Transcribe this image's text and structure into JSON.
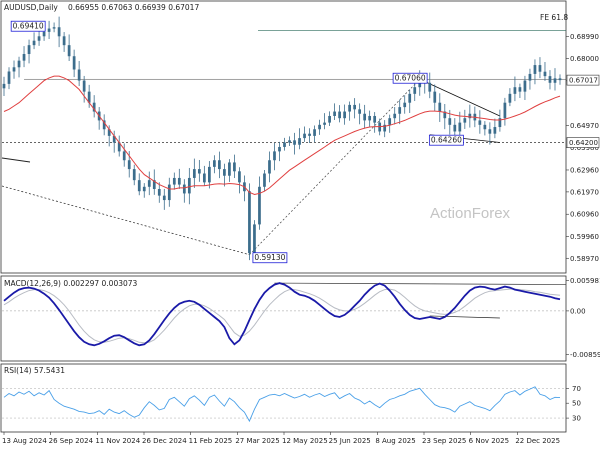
{
  "chart_data": [
    {
      "type": "candlestick",
      "panel": "price",
      "symbol_header": "AUDUSD,Daily",
      "ohlc_header": "0.66955 0.67063 0.66939 0.67017",
      "watermark": "ActionForex",
      "ylim": [
        0.5835,
        0.7055
      ],
      "y_ticks": [
        0.6899,
        0.68,
        0.6699,
        0.6497,
        0.6398,
        0.6296,
        0.6197,
        0.6096,
        0.5996,
        0.5897
      ],
      "y_tick_labels": [
        "0.68990",
        "0.68000",
        "0.66990",
        "0.64970",
        "0.63980",
        "0.62960",
        "0.61970",
        "0.60960",
        "0.59960",
        "0.58970"
      ],
      "last_price_label": "0.67017",
      "horizontal_level_label": "0.64200",
      "horizontal_level": 0.642,
      "fib_label": "FE 61.8",
      "fib_level": 0.6927,
      "resistance_level": 0.6706,
      "annotations": [
        {
          "label": "0.69410",
          "date_index": 1,
          "value": 0.6941
        },
        {
          "label": "0.59130",
          "date_index": 11,
          "value": 0.5913
        },
        {
          "label": "0.67060",
          "date_index": 16.8,
          "value": 0.6706
        },
        {
          "label": "0.64260",
          "date_index": 18.3,
          "value": 0.6426
        }
      ],
      "series_close": [
        0.6685,
        0.6741,
        0.676,
        0.679,
        0.682,
        0.686,
        0.688,
        0.69,
        0.692,
        0.6935,
        0.6941,
        0.69,
        0.686,
        0.681,
        0.675,
        0.67,
        0.665,
        0.66,
        0.656,
        0.652,
        0.648,
        0.645,
        0.642,
        0.638,
        0.634,
        0.63,
        0.625,
        0.62,
        0.622,
        0.625,
        0.621,
        0.618,
        0.616,
        0.623,
        0.626,
        0.623,
        0.619,
        0.626,
        0.63,
        0.628,
        0.624,
        0.631,
        0.634,
        0.63,
        0.627,
        0.633,
        0.629,
        0.624,
        0.62,
        0.592,
        0.605,
        0.622,
        0.628,
        0.634,
        0.638,
        0.64,
        0.642,
        0.643,
        0.641,
        0.644,
        0.646,
        0.645,
        0.648,
        0.65,
        0.651,
        0.654,
        0.656,
        0.653,
        0.656,
        0.659,
        0.657,
        0.655,
        0.652,
        0.654,
        0.651,
        0.647,
        0.65,
        0.653,
        0.655,
        0.658,
        0.66,
        0.664,
        0.667,
        0.67,
        0.669,
        0.665,
        0.66,
        0.656,
        0.653,
        0.65,
        0.647,
        0.651,
        0.653,
        0.655,
        0.652,
        0.65,
        0.648,
        0.646,
        0.649,
        0.653,
        0.66,
        0.664,
        0.667,
        0.665,
        0.67,
        0.673,
        0.677,
        0.674,
        0.672,
        0.669,
        0.671,
        0.6702
      ],
      "ma_fast": [
        0.656,
        0.657,
        0.6585,
        0.66,
        0.662,
        0.664,
        0.666,
        0.668,
        0.67,
        0.6712,
        0.672,
        0.672,
        0.6712,
        0.67,
        0.668,
        0.666,
        0.663,
        0.66,
        0.657,
        0.654,
        0.651,
        0.648,
        0.645,
        0.642,
        0.639,
        0.636,
        0.633,
        0.63,
        0.6275,
        0.626,
        0.6245,
        0.623,
        0.622,
        0.621,
        0.621,
        0.6215,
        0.6215,
        0.622,
        0.6225,
        0.6225,
        0.6225,
        0.6228,
        0.6232,
        0.6234,
        0.6232,
        0.6235,
        0.6233,
        0.623,
        0.622,
        0.6195,
        0.6185,
        0.619,
        0.62,
        0.6215,
        0.6235,
        0.6255,
        0.6275,
        0.6295,
        0.631,
        0.6325,
        0.634,
        0.6355,
        0.637,
        0.6385,
        0.64,
        0.6415,
        0.643,
        0.644,
        0.645,
        0.646,
        0.647,
        0.6478,
        0.6485,
        0.649,
        0.6492,
        0.6492,
        0.6494,
        0.6498,
        0.6505,
        0.6512,
        0.652,
        0.653,
        0.654,
        0.655,
        0.6558,
        0.6562,
        0.6562,
        0.656,
        0.6556,
        0.655,
        0.6544,
        0.654,
        0.6538,
        0.6536,
        0.6534,
        0.6531,
        0.6528,
        0.6524,
        0.6522,
        0.6522,
        0.6526,
        0.6532,
        0.654,
        0.6548,
        0.6558,
        0.657,
        0.6583,
        0.6594,
        0.6604,
        0.6612,
        0.6622,
        0.663
      ],
      "x_tick_labels": [
        "13 Aug 2024",
        "26 Sep 2024",
        "11 Nov 2024",
        "26 Dec 2024",
        "11 Feb 2025",
        "27 Mar 2025",
        "12 May 2025",
        "25 Jun 2025",
        "8 Aug 2025",
        "23 Sep 2025",
        "6 Nov 2025",
        "22 Dec 2025"
      ],
      "colors": {
        "candle": "#3c6d8c",
        "ma_fast": "#e04040",
        "trend": "#222222"
      }
    },
    {
      "type": "line",
      "panel": "macd",
      "header": "MACD(12,26,9) 0.002297 0.003073",
      "ylim": [
        -0.0095,
        0.0063
      ],
      "y_ticks": [
        0.005981,
        0.0,
        -0.00859
      ],
      "y_tick_labels": [
        "0.005981",
        "0.00",
        "-0.00859"
      ],
      "series": [
        {
          "name": "MACD",
          "color": "#1a1aa8",
          "values": [
            0.002,
            0.0028,
            0.0036,
            0.0042,
            0.0045,
            0.0046,
            0.0044,
            0.004,
            0.0034,
            0.0026,
            0.0015,
            0.0002,
            -0.0012,
            -0.0026,
            -0.004,
            -0.0052,
            -0.0061,
            -0.0066,
            -0.0068,
            -0.0065,
            -0.006,
            -0.0054,
            -0.0049,
            -0.0048,
            -0.0052,
            -0.0058,
            -0.0064,
            -0.0068,
            -0.0066,
            -0.0058,
            -0.0046,
            -0.0032,
            -0.0018,
            -0.0005,
            0.0006,
            0.0014,
            0.0018,
            0.002,
            0.0018,
            0.0012,
            0.0004,
            -0.0004,
            -0.0012,
            -0.002,
            -0.0032,
            -0.0054,
            -0.0066,
            -0.0058,
            -0.004,
            -0.0018,
            0.0004,
            0.0022,
            0.0036,
            0.0045,
            0.0052,
            0.0055,
            0.0052,
            0.0046,
            0.0038,
            0.0032,
            0.003,
            0.0026,
            0.002,
            0.0012,
            0.0004,
            -0.0004,
            -0.001,
            -0.0012,
            -0.0008,
            0.0,
            0.001,
            0.002,
            0.0032,
            0.0042,
            0.005,
            0.0054,
            0.005,
            0.004,
            0.0028,
            0.0014,
            0.0002,
            -0.0008,
            -0.0014,
            -0.0016,
            -0.0014,
            -0.0012,
            -0.0014,
            -0.0016,
            -0.0012,
            -0.0004,
            0.0006,
            0.0018,
            0.003,
            0.004,
            0.0046,
            0.0048,
            0.0047,
            0.0044,
            0.0042,
            0.0045,
            0.0048,
            0.0046,
            0.0042,
            0.004,
            0.0038,
            0.0036,
            0.0034,
            0.0032,
            0.003,
            0.0028,
            0.0025,
            0.0023
          ]
        },
        {
          "name": "Signal",
          "color": "#b8bcc4",
          "values": [
            0.0012,
            0.0018,
            0.0025,
            0.0031,
            0.0036,
            0.004,
            0.0042,
            0.0042,
            0.004,
            0.0036,
            0.003,
            0.0022,
            0.0012,
            0.0,
            -0.0014,
            -0.0028,
            -0.004,
            -0.005,
            -0.0057,
            -0.0061,
            -0.0062,
            -0.006,
            -0.0057,
            -0.0054,
            -0.0053,
            -0.0055,
            -0.0058,
            -0.0062,
            -0.0063,
            -0.0062,
            -0.0057,
            -0.0048,
            -0.0038,
            -0.0026,
            -0.0014,
            -0.0004,
            0.0004,
            0.001,
            0.0013,
            0.0013,
            0.001,
            0.0005,
            -0.0002,
            -0.0009,
            -0.0017,
            -0.003,
            -0.0043,
            -0.005,
            -0.0048,
            -0.004,
            -0.0028,
            -0.0014,
            0.0,
            0.0012,
            0.0022,
            0.0031,
            0.0038,
            0.0042,
            0.0042,
            0.004,
            0.0037,
            0.0034,
            0.003,
            0.0025,
            0.0019,
            0.0012,
            0.0006,
            0.0002,
            0.0,
            0.0,
            0.0003,
            0.0008,
            0.0015,
            0.0023,
            0.0031,
            0.0038,
            0.0042,
            0.0043,
            0.0041,
            0.0035,
            0.0027,
            0.0018,
            0.001,
            0.0004,
            0.0,
            -0.0002,
            -0.0004,
            -0.0006,
            -0.0007,
            -0.0006,
            -0.0003,
            0.0002,
            0.0009,
            0.0017,
            0.0025,
            0.0031,
            0.0036,
            0.0039,
            0.004,
            0.0041,
            0.0042,
            0.0043,
            0.0043,
            0.0042,
            0.0041,
            0.004,
            0.0038,
            0.0037,
            0.0035,
            0.0033,
            0.0032,
            0.0031
          ]
        }
      ],
      "colors": {
        "zero_line": "#999999",
        "top_band": "#333333"
      }
    },
    {
      "type": "line",
      "panel": "rsi",
      "header": "RSI(14) 57.5431",
      "ylim": [
        14,
        100
      ],
      "y_ticks": [
        70,
        50,
        30
      ],
      "y_tick_labels": [
        "70",
        "50",
        "30"
      ],
      "series": [
        {
          "name": "RSI",
          "color": "#4aa0e8",
          "values": [
            58,
            63,
            60,
            65,
            62,
            66,
            60,
            64,
            61,
            67,
            55,
            50,
            46,
            44,
            42,
            39,
            38,
            36,
            37,
            40,
            35,
            42,
            38,
            36,
            40,
            35,
            31,
            34,
            44,
            52,
            47,
            41,
            43,
            55,
            58,
            52,
            46,
            56,
            60,
            54,
            47,
            58,
            61,
            53,
            46,
            57,
            52,
            44,
            38,
            26,
            42,
            55,
            58,
            61,
            62,
            60,
            63,
            60,
            57,
            59,
            62,
            58,
            61,
            63,
            59,
            62,
            64,
            56,
            60,
            63,
            57,
            54,
            49,
            53,
            48,
            44,
            50,
            55,
            57,
            60,
            62,
            66,
            68,
            70,
            62,
            55,
            48,
            45,
            44,
            42,
            38,
            46,
            49,
            52,
            47,
            45,
            43,
            40,
            47,
            53,
            62,
            65,
            67,
            61,
            66,
            69,
            72,
            62,
            60,
            55,
            58,
            57.5
          ]
        }
      ],
      "colors": {
        "level_lines": "#bbbbbb"
      }
    }
  ]
}
